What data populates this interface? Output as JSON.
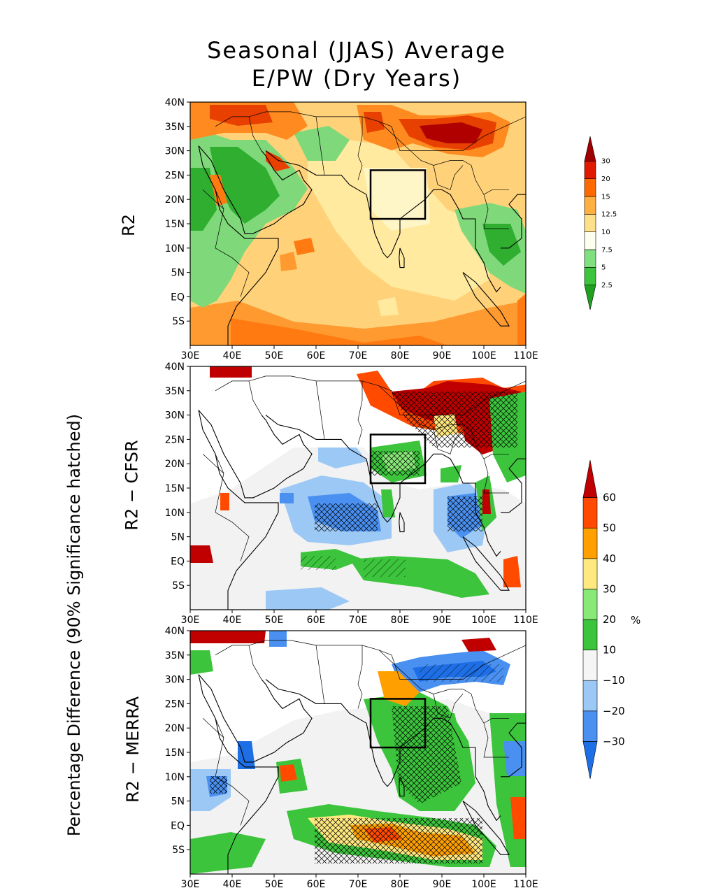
{
  "title": {
    "line1": "Seasonal (JJAS) Average",
    "line2": "E/PW (Dry Years)"
  },
  "y_labels": {
    "panel_top": "R2",
    "panel_middle": "R2 − CFSR",
    "panel_bottom": "R2 − MERRA",
    "shared": "Percentage Difference (90% Significance hatched)"
  },
  "axis_ticks": {
    "lat": [
      "40N",
      "35N",
      "30N",
      "25N",
      "20N",
      "15N",
      "10N",
      "5N",
      "EQ",
      "5S"
    ],
    "lon": [
      "30E",
      "40E",
      "50E",
      "60E",
      "70E",
      "80E",
      "90E",
      "100E",
      "110E"
    ]
  },
  "colorbar_top": {
    "levels": [
      "2.5",
      "5",
      "7.5",
      "10",
      "12.5",
      "15",
      "20",
      "30"
    ],
    "colors": [
      "#1fa01f",
      "#3cc43c",
      "#80e080",
      "#fffff0",
      "#ffe08a",
      "#ffb040",
      "#ff6a00",
      "#e01a00",
      "#a00000"
    ]
  },
  "colorbar_diff": {
    "levels": [
      "−30",
      "−20",
      "−10",
      "10",
      "20",
      "30",
      "40",
      "50",
      "60"
    ],
    "colors": [
      "#1e6fe6",
      "#4a90f0",
      "#9cc8f5",
      "#f5f5f5",
      "#3cc43c",
      "#88e878",
      "#ffe880",
      "#ffa000",
      "#ff4a00",
      "#c00000"
    ],
    "unit": "%"
  },
  "box_region": {
    "lon_min": 73,
    "lon_max": 86,
    "lat_min": 16,
    "lat_max": 26
  }
}
